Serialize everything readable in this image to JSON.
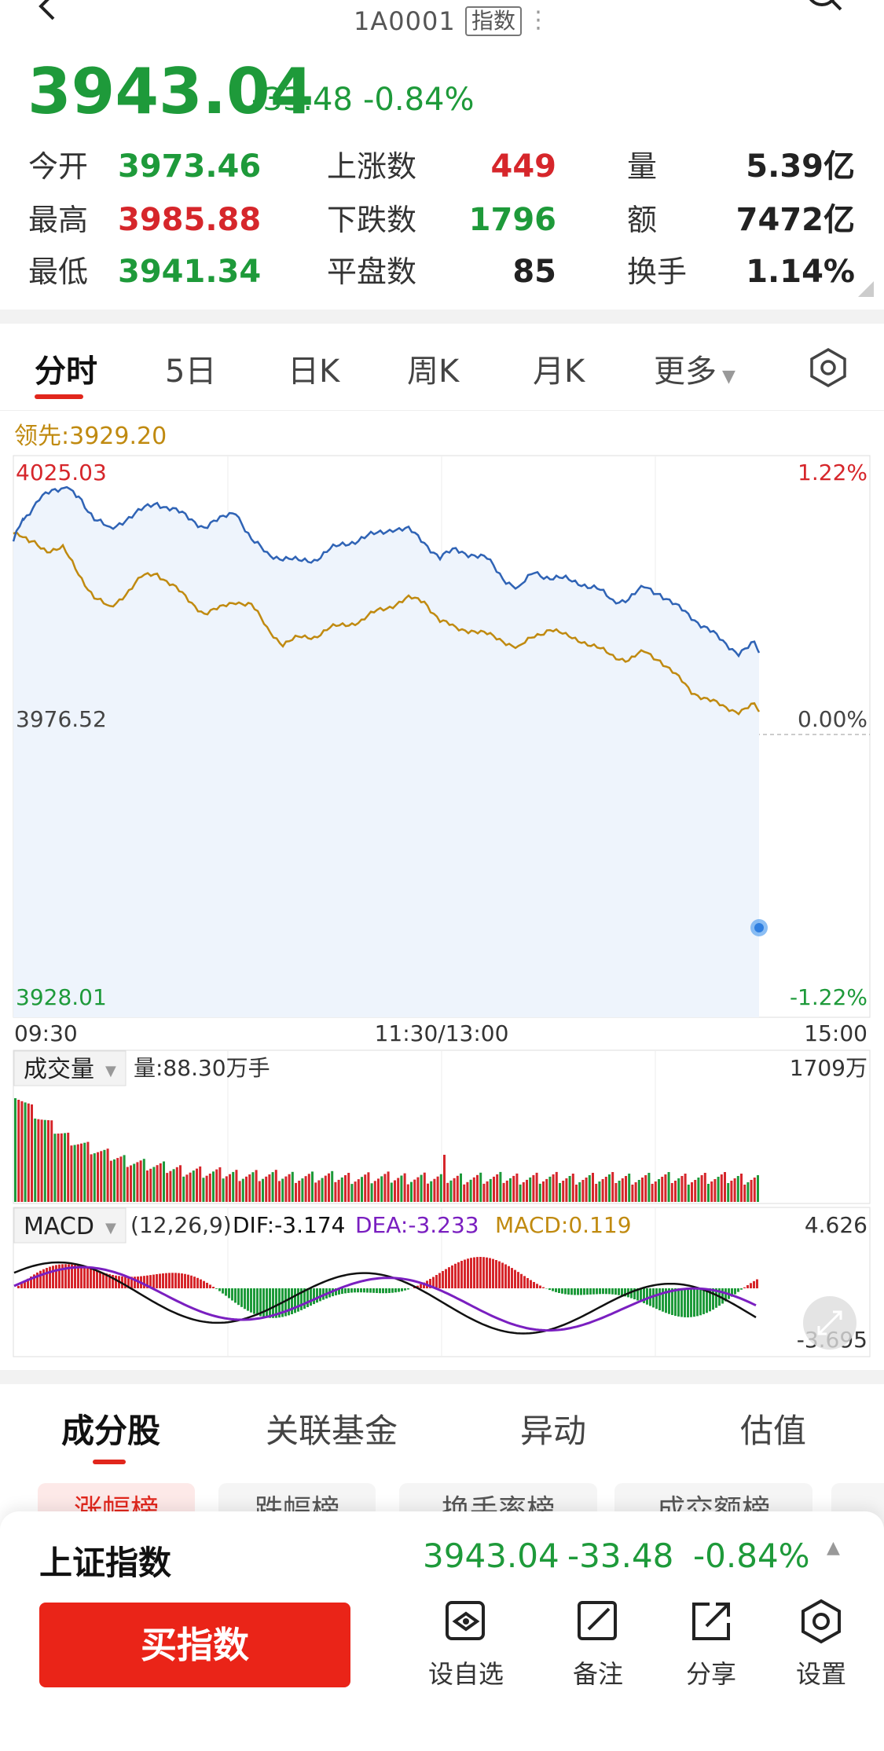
{
  "header": {
    "code": "1A0001",
    "tag": "指数",
    "price": "3943.04",
    "change": "-33.48",
    "change_pct": "-0.84%"
  },
  "stats": {
    "open_label": "今开",
    "open": "3973.46",
    "high_label": "最高",
    "high": "3985.88",
    "low_label": "最低",
    "low": "3941.34",
    "up_label": "上涨数",
    "up": "449",
    "down_label": "下跌数",
    "down": "1796",
    "flat_label": "平盘数",
    "flat": "85",
    "vol_label": "量",
    "vol": "5.39亿",
    "amt_label": "额",
    "amt": "7472亿",
    "turn_label": "换手",
    "turn": "1.14%"
  },
  "tabs": [
    "分时",
    "5日",
    "日K",
    "周K",
    "月K",
    "更多"
  ],
  "intraday": {
    "lead_label": "领先:3929.20",
    "max_price": "4025.03",
    "prev_close": "3976.52",
    "min_price": "3928.01",
    "max_pct": "1.22%",
    "zero_pct": "0.00%",
    "min_pct": "-1.22%",
    "time_start": "09:30",
    "time_mid": "11:30/13:00",
    "time_end": "15:00"
  },
  "volume": {
    "label": "成交量",
    "current": "量:88.30万手",
    "max": "1709万"
  },
  "macd": {
    "label": "MACD",
    "params": "(12,26,9)",
    "dif": "DIF:-3.174",
    "dea": "DEA:-3.233",
    "macd": "MACD:0.119",
    "max": "4.626",
    "min": "-3.695"
  },
  "bottom_tabs": [
    "成分股",
    "关联基金",
    "异动",
    "估值"
  ],
  "chips": [
    "涨幅榜",
    "跌幅榜",
    "换手率榜",
    "成交额榜"
  ],
  "bottom": {
    "name": "上证指数",
    "price": "3943.04",
    "change": "-33.48",
    "change_pct": "-0.84%",
    "buy_label": "买指数",
    "actions": [
      "设自选",
      "备注",
      "分享",
      "设置"
    ]
  },
  "colors": {
    "up": "#d6262b",
    "down": "#1e9a3a",
    "price_line": "#2f63b5",
    "avg_line": "#c08a10",
    "dea_line": "#7a1fc0",
    "accent": "#ea2418"
  }
}
